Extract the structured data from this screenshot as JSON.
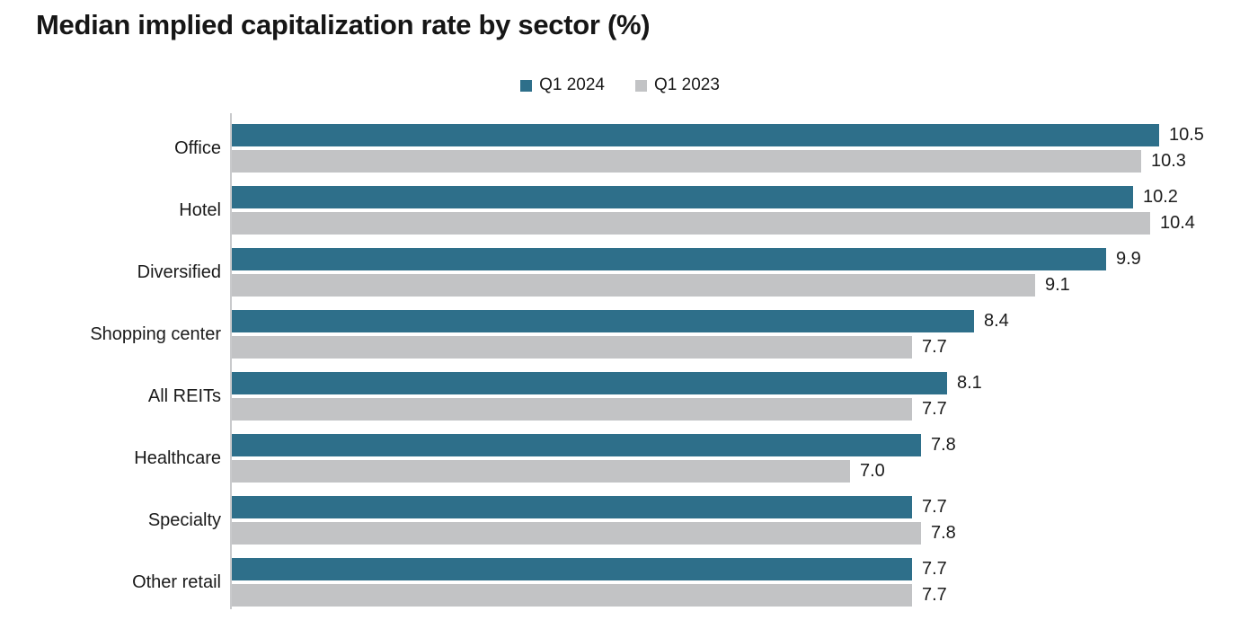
{
  "title": "Median implied capitalization rate by sector (%)",
  "legend": [
    {
      "label": "Q1 2024",
      "color": "#2E6F8A"
    },
    {
      "label": "Q1 2023",
      "color": "#C2C3C5"
    }
  ],
  "chart_data": {
    "type": "bar",
    "orientation": "horizontal",
    "title": "Median implied capitalization rate by sector (%)",
    "categories": [
      "Office",
      "Hotel",
      "Diversified",
      "Shopping center",
      "All REITs",
      "Healthcare",
      "Specialty",
      "Other retail"
    ],
    "series": [
      {
        "name": "Q1 2024",
        "color": "#2E6F8A",
        "values": [
          10.5,
          10.2,
          9.9,
          8.4,
          8.1,
          7.8,
          7.7,
          7.7
        ],
        "labels": [
          "10.5",
          "10.2",
          "9.9",
          "8.4",
          "8.1",
          "7.8",
          "7.7",
          "7.7"
        ]
      },
      {
        "name": "Q1 2023",
        "color": "#C2C3C5",
        "values": [
          10.3,
          10.4,
          9.1,
          7.7,
          7.7,
          7.0,
          7.8,
          7.7
        ],
        "labels": [
          "10.3",
          "10.4",
          "9.1",
          "7.7",
          "7.7",
          "7.0",
          "7.8",
          "7.7"
        ]
      }
    ],
    "value_labels": true,
    "xlim": [
      0,
      10.5
    ],
    "xlabel": "",
    "ylabel": "",
    "grid": false,
    "legend_position": "top-center"
  }
}
